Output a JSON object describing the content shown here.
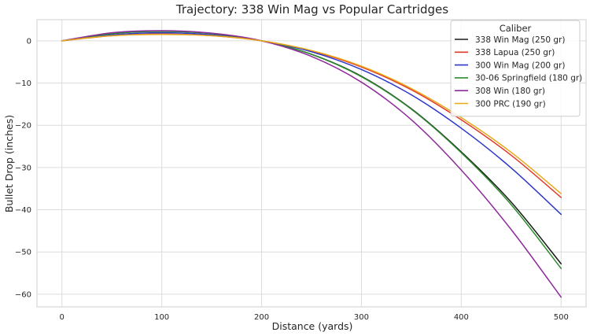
{
  "chart_data": {
    "type": "line",
    "title": "Trajectory: 338 Win Mag vs Popular Cartridges",
    "xlabel": "Distance (yards)",
    "ylabel": "Bullet Drop (inches)",
    "xlim": [
      -25,
      525
    ],
    "ylim": [
      -63,
      5
    ],
    "xticks": [
      0,
      100,
      200,
      300,
      400,
      500
    ],
    "yticks": [
      0,
      -10,
      -20,
      -30,
      -40,
      -50,
      -60
    ],
    "grid": true,
    "legend": {
      "title": "Caliber",
      "placement": "top-right"
    },
    "x": [
      0,
      50,
      100,
      150,
      200,
      250,
      300,
      350,
      400,
      450,
      500
    ],
    "series": [
      {
        "name": "338 Win Mag (250 gr)",
        "color": "#1a1a1a",
        "values": [
          0,
          1.7,
          2.3,
          1.7,
          0,
          -3.2,
          -8.4,
          -16.1,
          -26.3,
          -38.2,
          -52.8
        ]
      },
      {
        "name": "338 Lapua (250 gr)",
        "color": "#e03b2a",
        "values": [
          0,
          1.2,
          1.6,
          1.2,
          0,
          -2.4,
          -6.2,
          -11.6,
          -18.7,
          -27.1,
          -37.1
        ]
      },
      {
        "name": "300 Win Mag (200 gr)",
        "color": "#2a37c9",
        "values": [
          0,
          1.4,
          1.9,
          1.4,
          0,
          -2.6,
          -6.8,
          -12.8,
          -20.7,
          -30.1,
          -41.1
        ]
      },
      {
        "name": "30-06 Springfield (180 gr)",
        "color": "#2e8b2e",
        "values": [
          0,
          1.7,
          2.2,
          1.7,
          0,
          -3.2,
          -8.5,
          -16.2,
          -26.5,
          -38.8,
          -53.9
        ]
      },
      {
        "name": "308 Win (180 gr)",
        "color": "#8e2a9c",
        "values": [
          0,
          1.9,
          2.4,
          1.8,
          0,
          -3.7,
          -9.8,
          -18.7,
          -30.6,
          -44.7,
          -60.7
        ]
      },
      {
        "name": "300 PRC (190 gr)",
        "color": "#e8a817",
        "values": [
          0,
          1.2,
          1.5,
          1.2,
          0,
          -2.3,
          -6.0,
          -11.3,
          -18.2,
          -26.4,
          -36.2
        ]
      }
    ]
  }
}
